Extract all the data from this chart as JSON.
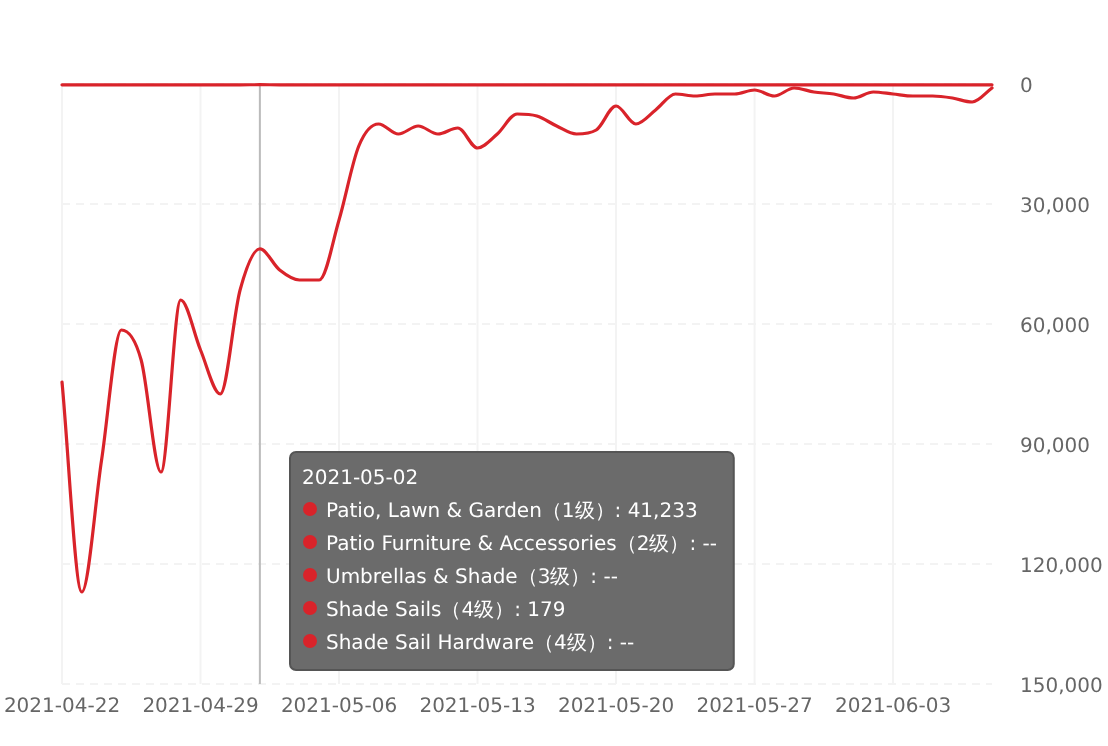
{
  "chart_data": {
    "type": "line",
    "x": [
      "2021-04-22",
      "2021-04-23",
      "2021-04-24",
      "2021-04-25",
      "2021-04-26",
      "2021-04-27",
      "2021-04-28",
      "2021-04-29",
      "2021-04-30",
      "2021-05-01",
      "2021-05-02",
      "2021-05-03",
      "2021-05-04",
      "2021-05-05",
      "2021-05-06",
      "2021-05-07",
      "2021-05-08",
      "2021-05-09",
      "2021-05-10",
      "2021-05-11",
      "2021-05-12",
      "2021-05-13",
      "2021-05-14",
      "2021-05-15",
      "2021-05-16",
      "2021-05-17",
      "2021-05-18",
      "2021-05-19",
      "2021-05-20",
      "2021-05-21",
      "2021-05-22",
      "2021-05-23",
      "2021-05-24",
      "2021-05-25",
      "2021-05-26",
      "2021-05-27",
      "2021-05-28",
      "2021-05-29",
      "2021-05-30",
      "2021-05-31",
      "2021-06-01",
      "2021-06-02",
      "2021-06-03",
      "2021-06-04",
      "2021-06-05",
      "2021-06-06",
      "2021-06-07",
      "2021-06-08"
    ],
    "series": [
      {
        "color": "#d9232a",
        "values": [
          200,
          200,
          200,
          200,
          200,
          200,
          200,
          200,
          200,
          200,
          179,
          200,
          200,
          200,
          200,
          200,
          200,
          200,
          200,
          200,
          200,
          200,
          200,
          200,
          200,
          200,
          200,
          200,
          200,
          200,
          200,
          200,
          200,
          200,
          200,
          200,
          200,
          200,
          200,
          200,
          200,
          200,
          200,
          200,
          200,
          200,
          200,
          200
        ]
      },
      {
        "color": "#d9232a",
        "values": [
          74500,
          127000,
          94000,
          61500,
          69000,
          97000,
          54000,
          66500,
          77500,
          51500,
          41233,
          46500,
          49000,
          49000,
          34000,
          15500,
          10000,
          12500,
          10500,
          12500,
          11000,
          16000,
          12500,
          7500,
          8000,
          10500,
          12500,
          11500,
          5500,
          10000,
          6500,
          2500,
          3000,
          2500,
          2500,
          1500,
          3000,
          1000,
          2000,
          2500,
          3500,
          2000,
          2500,
          3000,
          3000,
          3500,
          4500,
          1000
        ]
      }
    ],
    "xlim": [
      "2021-04-22",
      "2021-06-08"
    ],
    "xticks": [
      "2021-04-22",
      "2021-04-29",
      "2021-05-06",
      "2021-05-13",
      "2021-05-20",
      "2021-05-27",
      "2021-06-03"
    ],
    "ylim": [
      150000,
      0
    ],
    "yticks": [
      {
        "value": 0,
        "label": "0"
      },
      {
        "value": 30000,
        "label": "30,000"
      },
      {
        "value": 60000,
        "label": "60,000"
      },
      {
        "value": 90000,
        "label": "90,000"
      },
      {
        "value": 120000,
        "label": "120,000"
      },
      {
        "value": 150000,
        "label": "150,000"
      }
    ],
    "grid": true,
    "marker": "none",
    "line_style": "solid",
    "ref_lines": [
      {
        "axis": "x",
        "value": "2021-05-02",
        "color": "#bbbbbb"
      }
    ],
    "annotations": [
      "2021-05-02",
      "Patio, Lawn & Garden（1级）: 41,233",
      "Patio Furniture & Accessories（2级）: --",
      "Umbrellas & Shade（3级）: --",
      "Shade Sails（4级）: 179",
      "Shade Sail Hardware（4级）: --"
    ]
  }
}
